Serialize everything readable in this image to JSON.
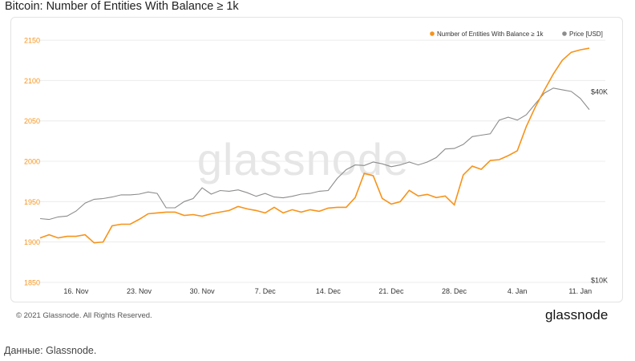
{
  "title": "Bitcoin: Number of Entities With Balance ≥ 1k",
  "footer": {
    "copyright": "© 2021 Glassnode. All Rights Reserved.",
    "brand": "glassnode"
  },
  "caption": "Данные: Glassnode.",
  "watermark": "glassnode",
  "chart_data": {
    "type": "line",
    "title": "Bitcoin: Number of Entities With Balance ≥ 1k",
    "legend_position": "top-right",
    "x_ticks": [
      "16. Nov",
      "23. Nov",
      "30. Nov",
      "7. Dec",
      "14. Dec",
      "21. Dec",
      "28. Dec",
      "4. Jan",
      "11. Jan"
    ],
    "y_left": {
      "ticks": [
        1850,
        1900,
        1950,
        2000,
        2050,
        2100,
        2150
      ],
      "range": [
        1850,
        2160
      ]
    },
    "y_right": {
      "ticks": [
        "$10K",
        "$40K"
      ],
      "scale": "log"
    },
    "grid": "horizontal",
    "colors": {
      "entities": "#f7931a",
      "price": "#8c8c8c"
    },
    "x": [
      "2020-11-12",
      "2020-11-13",
      "2020-11-14",
      "2020-11-15",
      "2020-11-16",
      "2020-11-17",
      "2020-11-18",
      "2020-11-19",
      "2020-11-20",
      "2020-11-21",
      "2020-11-22",
      "2020-11-23",
      "2020-11-24",
      "2020-11-25",
      "2020-11-26",
      "2020-11-27",
      "2020-11-28",
      "2020-11-29",
      "2020-11-30",
      "2020-12-01",
      "2020-12-02",
      "2020-12-03",
      "2020-12-04",
      "2020-12-05",
      "2020-12-06",
      "2020-12-07",
      "2020-12-08",
      "2020-12-09",
      "2020-12-10",
      "2020-12-11",
      "2020-12-12",
      "2020-12-13",
      "2020-12-14",
      "2020-12-15",
      "2020-12-16",
      "2020-12-17",
      "2020-12-18",
      "2020-12-19",
      "2020-12-20",
      "2020-12-21",
      "2020-12-22",
      "2020-12-23",
      "2020-12-24",
      "2020-12-25",
      "2020-12-26",
      "2020-12-27",
      "2020-12-28",
      "2020-12-29",
      "2020-12-30",
      "2020-12-31",
      "2021-01-01",
      "2021-01-02",
      "2021-01-03",
      "2021-01-04",
      "2021-01-05",
      "2021-01-06",
      "2021-01-07",
      "2021-01-08",
      "2021-01-09",
      "2021-01-10",
      "2021-01-11",
      "2021-01-12"
    ],
    "series": [
      {
        "name": "Number of Entities With Balance ≥ 1k",
        "axis": "left",
        "values": [
          1905,
          1909,
          1905,
          1907,
          1907,
          1909,
          1899,
          1900,
          1920,
          1922,
          1922,
          1928,
          1935,
          1936,
          1937,
          1937,
          1933,
          1934,
          1932,
          1935,
          1937,
          1939,
          1944,
          1941,
          1939,
          1936,
          1943,
          1936,
          1940,
          1937,
          1940,
          1938,
          1942,
          1943,
          1943,
          1955,
          1985,
          1982,
          1954,
          1947,
          1950,
          1964,
          1957,
          1959,
          1955,
          1957,
          1946,
          1983,
          1994,
          1990,
          2001,
          2002,
          2007,
          2013,
          2043,
          2067,
          2088,
          2108,
          2125,
          2135,
          2138,
          2140
        ]
      },
      {
        "name": "Price [USD]",
        "axis": "right",
        "values": [
          15700,
          15600,
          15900,
          16000,
          16600,
          17600,
          18100,
          18200,
          18400,
          18700,
          18700,
          18800,
          19100,
          18900,
          17000,
          17000,
          17800,
          18200,
          19700,
          18800,
          19300,
          19200,
          19400,
          19000,
          18500,
          18900,
          18400,
          18300,
          18500,
          18800,
          18900,
          19200,
          19300,
          21100,
          22500,
          23300,
          23200,
          23800,
          23500,
          23000,
          23300,
          23800,
          23300,
          23800,
          24600,
          26200,
          26300,
          27100,
          28700,
          29000,
          29300,
          32400,
          33100,
          32400,
          33700,
          36500,
          39500,
          41000,
          40500,
          40000,
          38000,
          35000
        ]
      }
    ]
  }
}
